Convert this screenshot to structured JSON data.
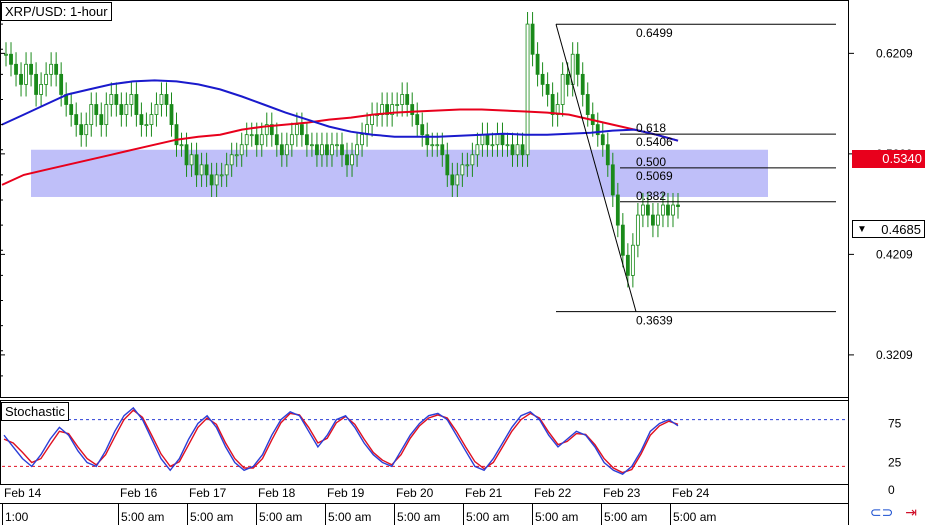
{
  "title": "XRP/USD: 1-hour",
  "indicator_label": "Stochastic",
  "price_badges": {
    "current_ma": "0.5340",
    "last": "0.4685",
    "last_marker": "▼"
  },
  "colors": {
    "ma_red": "#e8001c",
    "ma_blue": "#1a1acc",
    "zone": "#b4b4f8",
    "candle": "#1a8a1a",
    "stoch_blue": "#2b3fd8",
    "stoch_red": "#e01020"
  },
  "icons": [
    "link-icon",
    "arrow-icon"
  ],
  "chart_data": [
    {
      "type": "candlestick",
      "title": "XRP/USD: 1-hour",
      "y_ticks": [
        "0.6209",
        "0.5209",
        "0.4209",
        "0.3209"
      ],
      "ylim": [
        0.28,
        0.67
      ],
      "x_ticks_top": [
        "Feb 14",
        "Feb 16",
        "Feb 17",
        "Feb 18",
        "Feb 19",
        "Feb 20",
        "Feb 21",
        "Feb 22",
        "Feb 23",
        "Feb 24"
      ],
      "x_ticks_bottom": [
        "1:00",
        "5:00 am",
        "5:00 am",
        "5:00 am",
        "5:00 am",
        "5:00 am",
        "5:00 am",
        "5:00 am",
        "5:00 am",
        "5:00 am"
      ],
      "support_zone": [
        0.478,
        0.525
      ],
      "fibonacci": {
        "high": "0.6499",
        "low": "0.3639",
        "levels": [
          {
            "ratio": "0.618",
            "price": "0.5406",
            "value": 0.5406
          },
          {
            "ratio": "0.500",
            "price": "0.5069",
            "value": 0.5069
          },
          {
            "ratio": "0.382",
            "price": "",
            "value": 0.4732
          }
        ],
        "high_value": 0.6499,
        "low_value": 0.3639
      },
      "close_series": [
        0.62,
        0.61,
        0.6,
        0.59,
        0.61,
        0.6,
        0.58,
        0.59,
        0.6,
        0.61,
        0.6,
        0.58,
        0.57,
        0.56,
        0.55,
        0.54,
        0.55,
        0.57,
        0.56,
        0.55,
        0.57,
        0.58,
        0.57,
        0.56,
        0.57,
        0.58,
        0.56,
        0.55,
        0.55,
        0.56,
        0.57,
        0.58,
        0.57,
        0.55,
        0.53,
        0.53,
        0.51,
        0.52,
        0.5,
        0.51,
        0.5,
        0.49,
        0.5,
        0.5,
        0.51,
        0.52,
        0.52,
        0.53,
        0.54,
        0.54,
        0.53,
        0.54,
        0.55,
        0.54,
        0.53,
        0.52,
        0.53,
        0.54,
        0.55,
        0.54,
        0.53,
        0.53,
        0.52,
        0.53,
        0.52,
        0.53,
        0.53,
        0.52,
        0.51,
        0.52,
        0.53,
        0.54,
        0.55,
        0.56,
        0.56,
        0.57,
        0.56,
        0.57,
        0.57,
        0.58,
        0.57,
        0.56,
        0.55,
        0.54,
        0.53,
        0.53,
        0.53,
        0.52,
        0.5,
        0.49,
        0.5,
        0.51,
        0.51,
        0.52,
        0.53,
        0.54,
        0.53,
        0.53,
        0.54,
        0.53,
        0.53,
        0.52,
        0.53,
        0.52,
        0.65,
        0.62,
        0.6,
        0.59,
        0.58,
        0.56,
        0.57,
        0.6,
        0.59,
        0.62,
        0.6,
        0.58,
        0.56,
        0.55,
        0.54,
        0.53,
        0.51,
        0.48,
        0.45,
        0.42,
        0.4,
        0.43,
        0.46,
        0.47,
        0.46,
        0.45,
        0.46,
        0.47,
        0.46,
        0.47,
        0.4685
      ],
      "ma_red": [
        0.49,
        0.5,
        0.505,
        0.51,
        0.515,
        0.52,
        0.525,
        0.53,
        0.535,
        0.538,
        0.54,
        0.545,
        0.548,
        0.55,
        0.552,
        0.555,
        0.557,
        0.56,
        0.562,
        0.563,
        0.564,
        0.565,
        0.565,
        0.564,
        0.563,
        0.562,
        0.56,
        0.555,
        0.55,
        0.545,
        0.54,
        0.534
      ],
      "ma_blue": [
        0.55,
        0.56,
        0.57,
        0.58,
        0.585,
        0.59,
        0.593,
        0.594,
        0.593,
        0.59,
        0.585,
        0.578,
        0.57,
        0.562,
        0.555,
        0.548,
        0.543,
        0.54,
        0.538,
        0.538,
        0.538,
        0.539,
        0.54,
        0.541,
        0.54,
        0.54,
        0.541,
        0.542,
        0.544,
        0.545,
        0.54,
        0.534
      ]
    },
    {
      "type": "line",
      "title": "Stochastic",
      "y_ticks": [
        "75",
        "25",
        "0"
      ],
      "levels": [
        80,
        20
      ],
      "ylim": [
        0,
        100
      ],
      "series": [
        {
          "values": [
            60,
            45,
            30,
            20,
            35,
            55,
            70,
            60,
            40,
            25,
            20,
            40,
            65,
            85,
            95,
            80,
            55,
            30,
            15,
            30,
            55,
            75,
            85,
            70,
            45,
            25,
            15,
            20,
            35,
            60,
            80,
            90,
            85,
            65,
            45,
            60,
            80,
            85,
            70,
            50,
            35,
            25,
            20,
            40,
            60,
            75,
            85,
            88,
            80,
            60,
            40,
            20,
            15,
            30,
            50,
            70,
            85,
            90,
            80,
            60,
            45,
            55,
            65,
            60,
            45,
            25,
            15,
            10,
            20,
            40,
            65,
            75,
            80,
            72
          ]
        },
        {
          "values": [
            55,
            50,
            38,
            25,
            30,
            48,
            65,
            62,
            45,
            30,
            22,
            35,
            58,
            80,
            92,
            83,
            60,
            36,
            20,
            26,
            48,
            70,
            82,
            74,
            50,
            30,
            18,
            18,
            30,
            54,
            76,
            88,
            86,
            70,
            50,
            56,
            76,
            84,
            74,
            55,
            38,
            28,
            22,
            35,
            56,
            72,
            82,
            86,
            82,
            65,
            45,
            26,
            17,
            25,
            45,
            65,
            80,
            88,
            82,
            64,
            48,
            52,
            62,
            61,
            48,
            30,
            18,
            12,
            16,
            36,
            60,
            72,
            78,
            74
          ]
        }
      ]
    }
  ]
}
